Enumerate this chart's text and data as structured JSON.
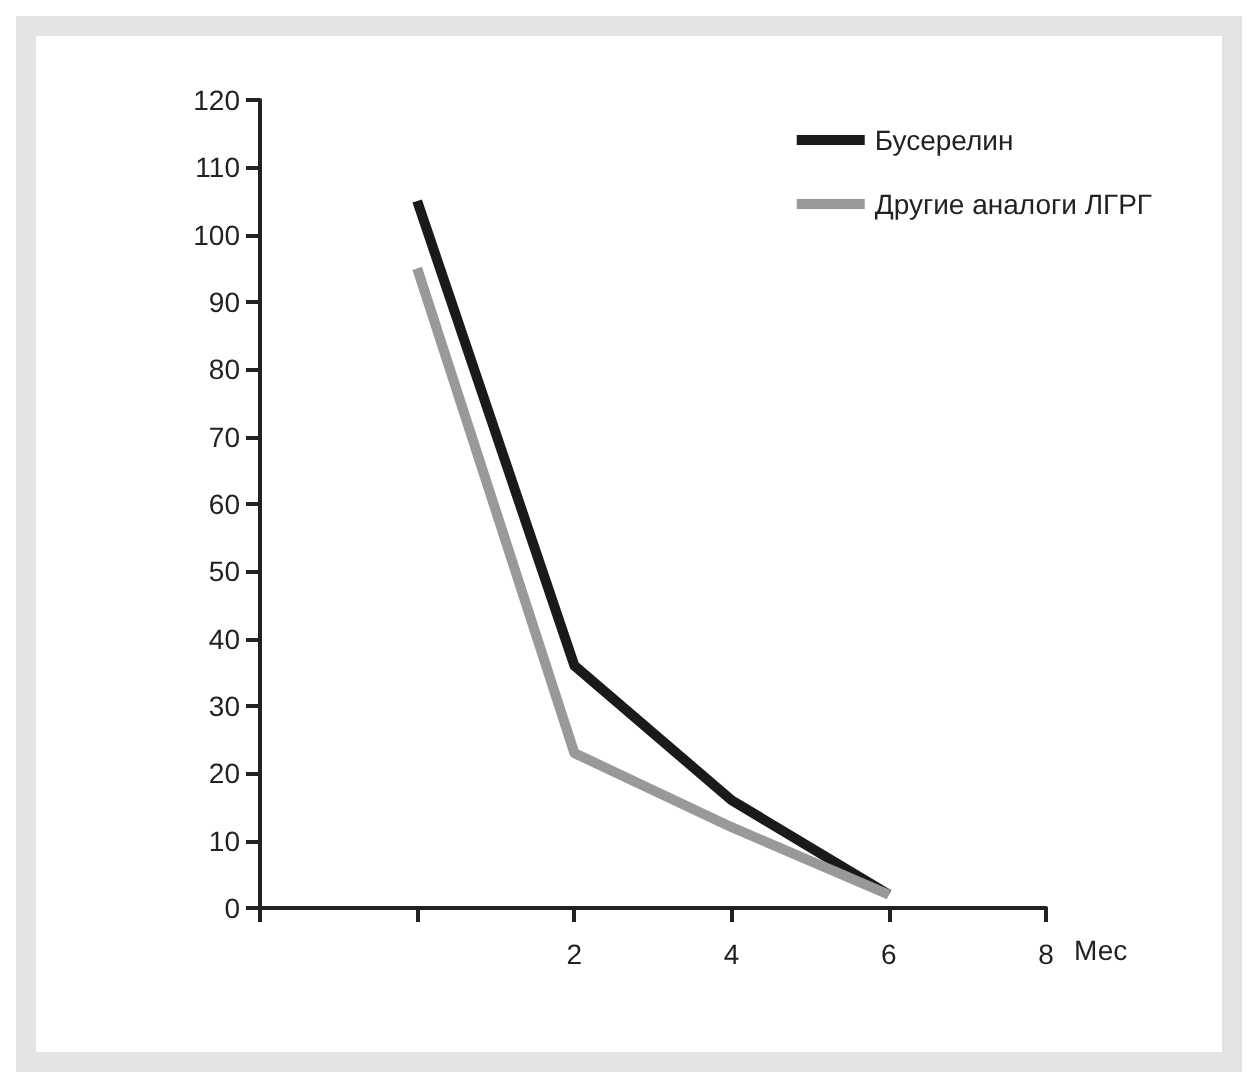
{
  "chart_data": {
    "type": "line",
    "xlabel": "Мес",
    "x": [
      0,
      2,
      4,
      6
    ],
    "series": [
      {
        "name": "Бусерелин",
        "color": "#1a1a1a",
        "values": [
          105,
          36,
          16,
          2
        ]
      },
      {
        "name": "Другие аналоги ЛГРГ",
        "color": "#999999",
        "values": [
          95,
          23,
          12,
          2
        ]
      }
    ],
    "xlim": [
      -2,
      8
    ],
    "xticks": [
      {
        "value": -2,
        "label": null
      },
      {
        "value": 0,
        "label": null
      },
      2,
      4,
      6,
      8
    ],
    "ylim": [
      0,
      120
    ],
    "yticks": [
      0,
      10,
      20,
      30,
      40,
      50,
      60,
      70,
      80,
      90,
      100,
      110,
      120
    ],
    "grid": false,
    "legend": "top right",
    "marker": "none",
    "line_style": "solid"
  }
}
